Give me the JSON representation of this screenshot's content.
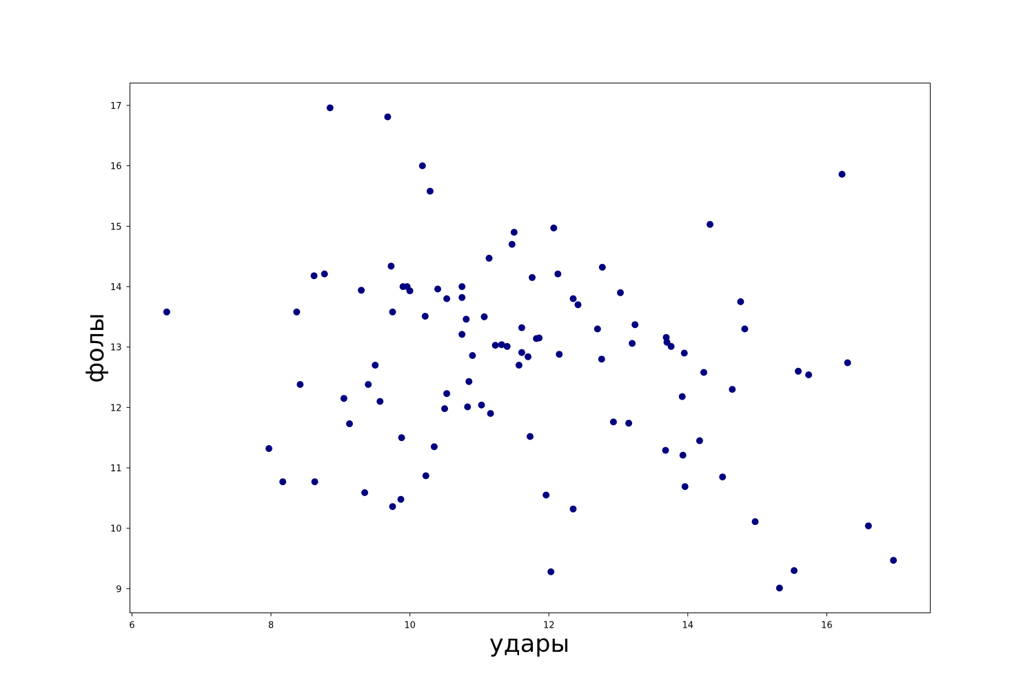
{
  "chart_data": {
    "type": "scatter",
    "title": "",
    "xlabel": "удары",
    "ylabel": "фолы",
    "xlim": [
      5.97,
      17.49
    ],
    "ylim": [
      8.6,
      17.37
    ],
    "xticks": [
      6,
      8,
      10,
      12,
      14,
      16
    ],
    "yticks": [
      9,
      10,
      11,
      12,
      13,
      14,
      15,
      16,
      17
    ],
    "grid": false,
    "legend": "none",
    "marker_color": "#000080",
    "points": [
      [
        6.5,
        13.58
      ],
      [
        7.97,
        11.32
      ],
      [
        8.17,
        10.77
      ],
      [
        8.37,
        13.58
      ],
      [
        8.42,
        12.38
      ],
      [
        8.62,
        14.18
      ],
      [
        8.63,
        10.77
      ],
      [
        8.77,
        14.21
      ],
      [
        8.85,
        16.96
      ],
      [
        9.05,
        12.15
      ],
      [
        9.13,
        11.73
      ],
      [
        9.3,
        13.94
      ],
      [
        9.35,
        10.59
      ],
      [
        9.4,
        12.38
      ],
      [
        9.5,
        12.7
      ],
      [
        9.57,
        12.1
      ],
      [
        9.68,
        16.81
      ],
      [
        9.73,
        14.34
      ],
      [
        9.75,
        13.58
      ],
      [
        9.75,
        10.36
      ],
      [
        9.87,
        10.48
      ],
      [
        9.88,
        11.5
      ],
      [
        9.9,
        14.0
      ],
      [
        9.96,
        14.0
      ],
      [
        10.0,
        13.93
      ],
      [
        10.18,
        16.0
      ],
      [
        10.22,
        13.51
      ],
      [
        10.23,
        10.87
      ],
      [
        10.29,
        15.58
      ],
      [
        10.35,
        11.35
      ],
      [
        10.4,
        13.96
      ],
      [
        10.5,
        11.98
      ],
      [
        10.53,
        13.8
      ],
      [
        10.53,
        12.23
      ],
      [
        10.75,
        14.0
      ],
      [
        10.75,
        13.82
      ],
      [
        10.75,
        13.21
      ],
      [
        10.81,
        13.46
      ],
      [
        10.83,
        12.01
      ],
      [
        10.85,
        12.43
      ],
      [
        10.9,
        12.86
      ],
      [
        11.03,
        12.04
      ],
      [
        11.07,
        13.5
      ],
      [
        11.14,
        14.47
      ],
      [
        11.16,
        11.9
      ],
      [
        11.23,
        13.03
      ],
      [
        11.32,
        13.04
      ],
      [
        11.4,
        13.01
      ],
      [
        11.47,
        14.7
      ],
      [
        11.5,
        14.9
      ],
      [
        11.57,
        12.7
      ],
      [
        11.61,
        13.32
      ],
      [
        11.61,
        12.91
      ],
      [
        11.7,
        12.84
      ],
      [
        11.73,
        11.52
      ],
      [
        11.76,
        14.15
      ],
      [
        11.82,
        13.14
      ],
      [
        11.86,
        13.15
      ],
      [
        11.96,
        10.55
      ],
      [
        12.03,
        9.28
      ],
      [
        12.07,
        14.97
      ],
      [
        12.13,
        14.21
      ],
      [
        12.15,
        12.88
      ],
      [
        12.35,
        13.8
      ],
      [
        12.35,
        10.32
      ],
      [
        12.42,
        13.7
      ],
      [
        12.7,
        13.3
      ],
      [
        12.76,
        12.8
      ],
      [
        12.77,
        14.32
      ],
      [
        12.93,
        11.76
      ],
      [
        13.03,
        13.9
      ],
      [
        13.15,
        11.74
      ],
      [
        13.2,
        13.06
      ],
      [
        13.24,
        13.37
      ],
      [
        13.68,
        11.29
      ],
      [
        13.69,
        13.16
      ],
      [
        13.7,
        13.08
      ],
      [
        13.76,
        13.01
      ],
      [
        13.92,
        12.18
      ],
      [
        13.93,
        11.21
      ],
      [
        13.95,
        12.9
      ],
      [
        13.96,
        10.69
      ],
      [
        14.17,
        11.45
      ],
      [
        14.23,
        12.58
      ],
      [
        14.32,
        15.03
      ],
      [
        14.5,
        10.85
      ],
      [
        14.64,
        12.3
      ],
      [
        14.76,
        13.75
      ],
      [
        14.82,
        13.3
      ],
      [
        14.97,
        10.11
      ],
      [
        15.32,
        9.01
      ],
      [
        15.53,
        9.3
      ],
      [
        15.59,
        12.6
      ],
      [
        15.74,
        12.54
      ],
      [
        16.22,
        15.86
      ],
      [
        16.3,
        12.74
      ],
      [
        16.6,
        10.04
      ],
      [
        16.96,
        9.47
      ]
    ]
  }
}
